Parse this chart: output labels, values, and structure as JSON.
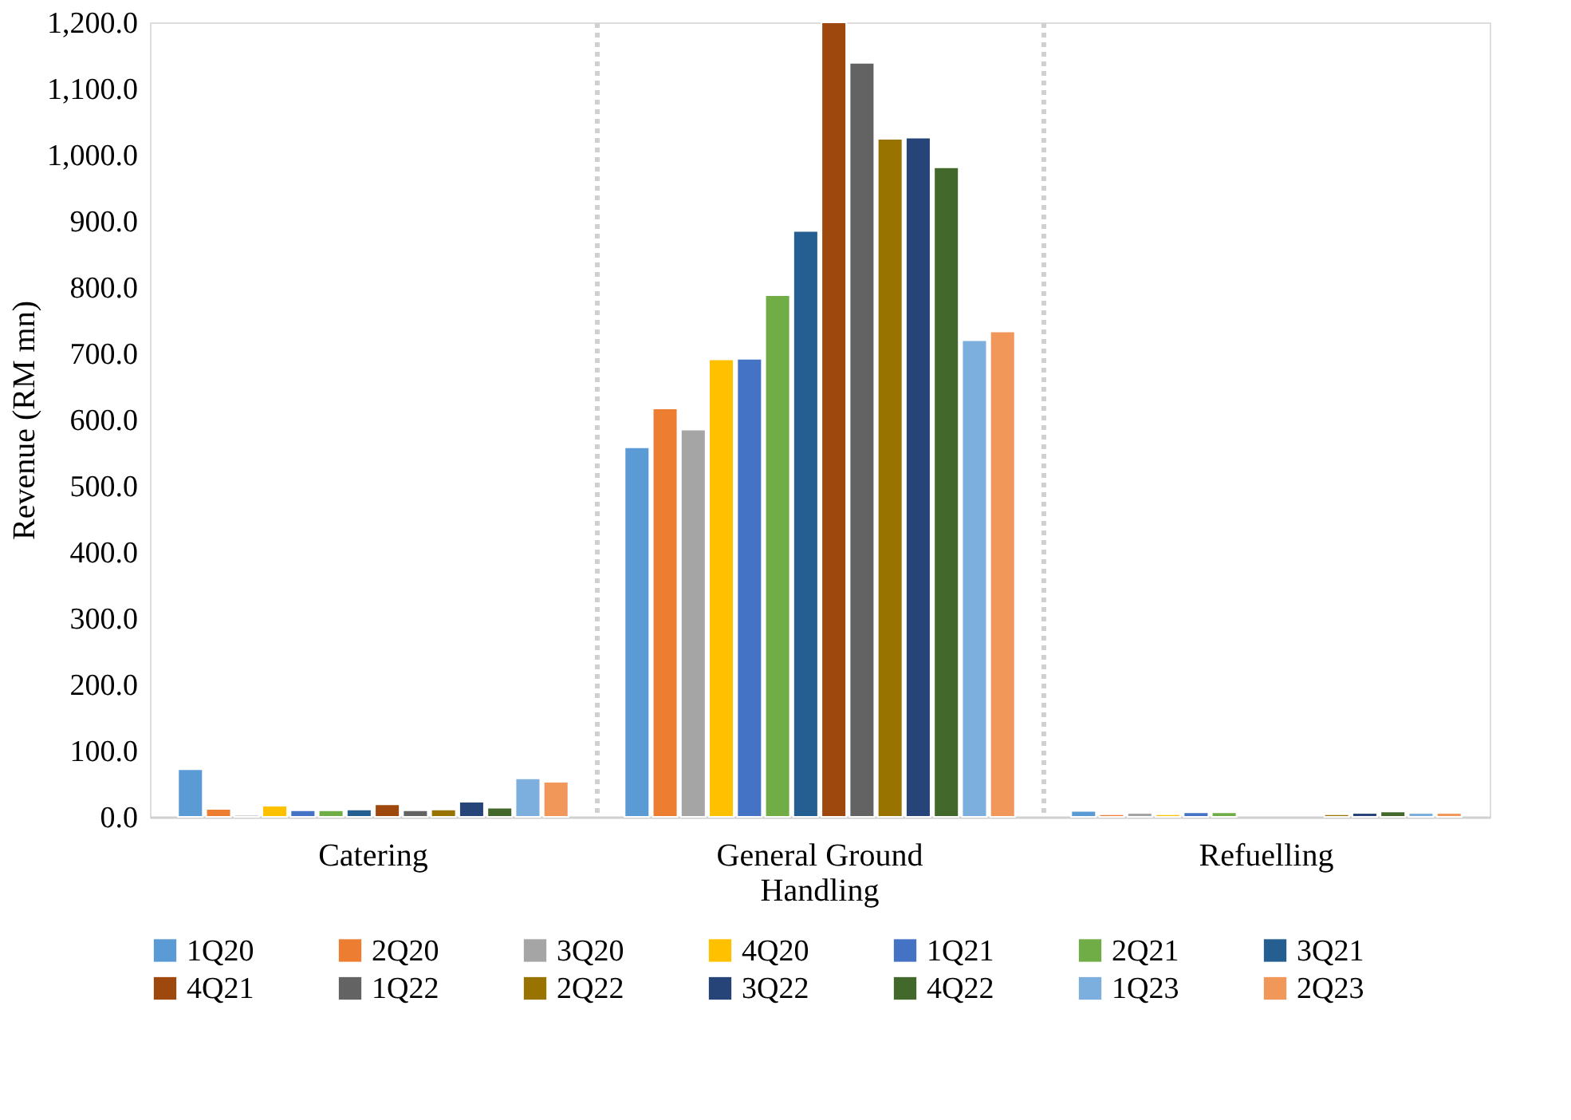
{
  "chart_data": {
    "type": "bar",
    "ylabel": "Revenue (RM mn)",
    "categories": [
      "Catering",
      "General Ground Handling",
      "Refuelling"
    ],
    "series": [
      {
        "name": "1Q20",
        "color": "#5b9bd5",
        "values": [
          72,
          558,
          9
        ]
      },
      {
        "name": "2Q20",
        "color": "#ed7d31",
        "values": [
          12,
          617,
          4
        ]
      },
      {
        "name": "3Q20",
        "color": "#a5a5a5",
        "values": [
          3,
          585,
          6
        ]
      },
      {
        "name": "4Q20",
        "color": "#ffc000",
        "values": [
          17,
          691,
          4
        ]
      },
      {
        "name": "1Q21",
        "color": "#4472c4",
        "values": [
          10,
          692,
          7
        ]
      },
      {
        "name": "2Q21",
        "color": "#70ad47",
        "values": [
          10,
          788,
          7
        ]
      },
      {
        "name": "3Q21",
        "color": "#255e91",
        "values": [
          11,
          885,
          null
        ]
      },
      {
        "name": "4Q21",
        "color": "#9e480e",
        "values": [
          19,
          1200,
          null
        ]
      },
      {
        "name": "1Q22",
        "color": "#636363",
        "values": [
          10,
          1139,
          null
        ]
      },
      {
        "name": "2Q22",
        "color": "#997300",
        "values": [
          11,
          1024,
          4
        ]
      },
      {
        "name": "3Q22",
        "color": "#264478",
        "values": [
          23,
          1026,
          6
        ]
      },
      {
        "name": "4Q22",
        "color": "#43682b",
        "values": [
          14,
          981,
          8
        ]
      },
      {
        "name": "1Q23",
        "color": "#7cafdd",
        "values": [
          58,
          720,
          6
        ]
      },
      {
        "name": "2Q23",
        "color": "#f1975a",
        "values": [
          53,
          733,
          6
        ]
      }
    ],
    "ylim": [
      0,
      1200
    ],
    "yticks": [
      {
        "value": 0,
        "label": "0.0"
      },
      {
        "value": 100,
        "label": "100.0"
      },
      {
        "value": 200,
        "label": "200.0"
      },
      {
        "value": 300,
        "label": "300.0"
      },
      {
        "value": 400,
        "label": "400.0"
      },
      {
        "value": 500,
        "label": "500.0"
      },
      {
        "value": 600,
        "label": "600.0"
      },
      {
        "value": 700,
        "label": "700.0"
      },
      {
        "value": 800,
        "label": "800.0"
      },
      {
        "value": 900,
        "label": "900.0"
      },
      {
        "value": 1000,
        "label": "1,000.0"
      },
      {
        "value": 1100,
        "label": "1,100.0"
      },
      {
        "value": 1200,
        "label": "1,200.0"
      }
    ],
    "grid": "x",
    "legend": "bottom"
  }
}
